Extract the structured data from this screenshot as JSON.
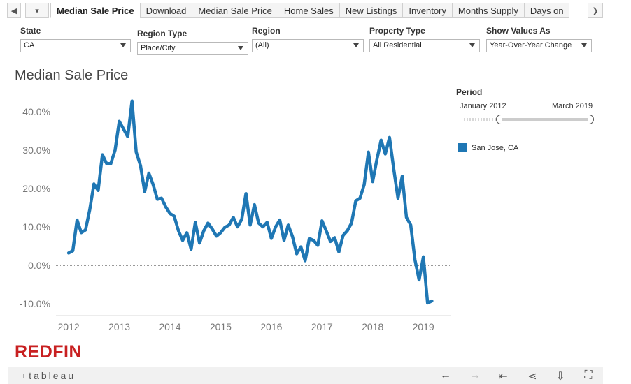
{
  "tabs": [
    {
      "label": "Median Sale Price",
      "active": true
    },
    {
      "label": "Download",
      "active": false
    },
    {
      "label": "Median Sale Price",
      "active": false
    },
    {
      "label": "Home Sales",
      "active": false
    },
    {
      "label": "New Listings",
      "active": false
    },
    {
      "label": "Inventory",
      "active": false
    },
    {
      "label": "Months Supply",
      "active": false
    },
    {
      "label": "Days on",
      "active": false
    }
  ],
  "nav": {
    "prev_icon": "◀",
    "next_icon": "❯",
    "menu_icon": "▾"
  },
  "filters": {
    "state": {
      "label": "State",
      "value": "CA"
    },
    "region_type": {
      "label": "Region Type",
      "value": "Place/City"
    },
    "region": {
      "label": "Region",
      "value": "(All)"
    },
    "property_type": {
      "label": "Property Type",
      "value": "All Residential"
    },
    "show_values_as": {
      "label": "Show Values As",
      "value": "Year-Over-Year Change"
    }
  },
  "period": {
    "label": "Period",
    "start": "January 2012",
    "end": "March 2019"
  },
  "legend": {
    "label": "San Jose, CA",
    "color": "#1f77b4"
  },
  "logo": "REDFIN",
  "toolbar": {
    "tableau_logo": "+tableau",
    "icons": [
      "undo-icon",
      "redo-icon",
      "revert-icon",
      "share-icon",
      "download-icon",
      "fullscreen-icon"
    ]
  },
  "chart_data": {
    "type": "line",
    "title": "Median Sale Price",
    "x_ticks": [
      "2012",
      "2013",
      "2014",
      "2015",
      "2016",
      "2017",
      "2018",
      "2019"
    ],
    "y_ticks": [
      "40.0%",
      "30.0%",
      "20.0%",
      "10.0%",
      "0.0%",
      "-10.0%"
    ],
    "ylim": [
      -12,
      44
    ],
    "xlim": [
      2011.75,
      2019.55
    ],
    "line_color": "#1f77b4",
    "series": [
      {
        "name": "San Jose, CA",
        "x": [
          2012.0,
          2012.083,
          2012.167,
          2012.25,
          2012.333,
          2012.417,
          2012.5,
          2012.583,
          2012.667,
          2012.75,
          2012.833,
          2012.917,
          2013.0,
          2013.083,
          2013.167,
          2013.25,
          2013.333,
          2013.417,
          2013.5,
          2013.583,
          2013.667,
          2013.75,
          2013.833,
          2013.917,
          2014.0,
          2014.083,
          2014.167,
          2014.25,
          2014.333,
          2014.417,
          2014.5,
          2014.583,
          2014.667,
          2014.75,
          2014.833,
          2014.917,
          2015.0,
          2015.083,
          2015.167,
          2015.25,
          2015.333,
          2015.417,
          2015.5,
          2015.583,
          2015.667,
          2015.75,
          2015.833,
          2015.917,
          2016.0,
          2016.083,
          2016.167,
          2016.25,
          2016.333,
          2016.417,
          2016.5,
          2016.583,
          2016.667,
          2016.75,
          2016.833,
          2016.917,
          2017.0,
          2017.083,
          2017.167,
          2017.25,
          2017.333,
          2017.417,
          2017.5,
          2017.583,
          2017.667,
          2017.75,
          2017.833,
          2017.917,
          2018.0,
          2018.083,
          2018.167,
          2018.25,
          2018.333,
          2018.417,
          2018.5,
          2018.583,
          2018.667,
          2018.75,
          2018.833,
          2018.917,
          2019.0,
          2019.083,
          2019.167
        ],
        "values": [
          3.2,
          3.8,
          11.8,
          8.5,
          9.2,
          14.5,
          21.2,
          19.5,
          28.8,
          26.5,
          26.5,
          30.0,
          37.5,
          35.5,
          33.5,
          42.8,
          29.5,
          26.0,
          19.2,
          24.0,
          21.0,
          17.2,
          17.5,
          15.2,
          13.5,
          12.8,
          9.0,
          6.5,
          8.5,
          4.2,
          11.2,
          5.8,
          9.0,
          11.0,
          9.5,
          7.6,
          8.5,
          9.9,
          10.5,
          12.5,
          10.0,
          12.0,
          18.7,
          10.5,
          15.8,
          11.0,
          10.0,
          11.2,
          7.0,
          10.0,
          11.8,
          6.5,
          10.5,
          7.5,
          3.0,
          4.8,
          1.2,
          7.0,
          6.5,
          5.2,
          11.6,
          9.0,
          6.2,
          7.2,
          3.5,
          7.8,
          9.0,
          11.0,
          16.8,
          17.5,
          21.0,
          29.5,
          21.8,
          27.5,
          32.6,
          29.0,
          33.3,
          25.0,
          17.5,
          23.2,
          12.5,
          10.5,
          1.5,
          -3.8,
          2.2,
          -9.8,
          -9.3
        ]
      }
    ]
  }
}
